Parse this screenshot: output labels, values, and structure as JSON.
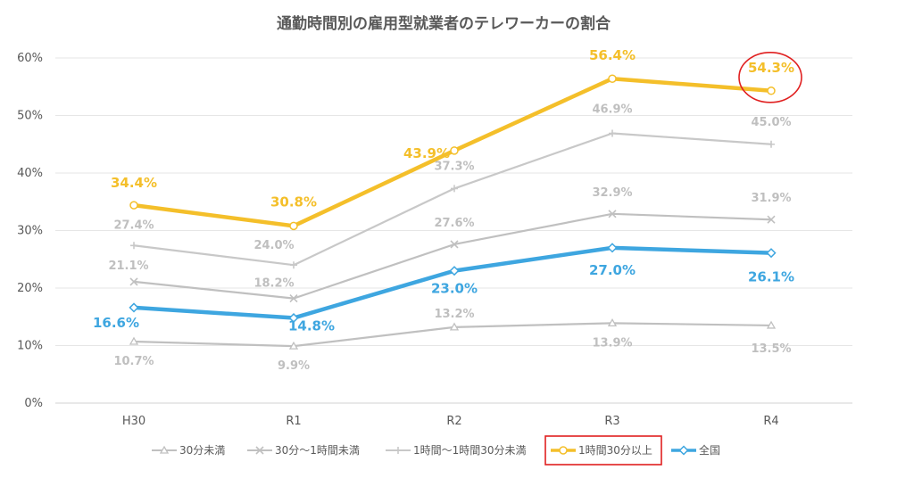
{
  "chart_data": {
    "type": "line",
    "title": "通勤時間別の雇用型就業者のテレワーカーの割合",
    "categories": [
      "H30",
      "R1",
      "R2",
      "R3",
      "R4"
    ],
    "y_ticks": [
      "0%",
      "10%",
      "20%",
      "30%",
      "40%",
      "50%",
      "60%"
    ],
    "ylim": [
      0,
      60
    ],
    "grid": true,
    "legend_position": "bottom",
    "series": [
      {
        "name": "30分未満",
        "values": [
          10.7,
          9.9,
          13.2,
          13.9,
          13.5
        ],
        "labels": [
          "10.7%",
          "9.9%",
          "13.2%",
          "13.9%",
          "13.5%"
        ],
        "color": "#c0c0c0",
        "marker": "triangle"
      },
      {
        "name": "30分～1時間未満",
        "values": [
          21.1,
          18.2,
          27.6,
          32.9,
          31.9
        ],
        "labels": [
          "21.1%",
          "18.2%",
          "27.6%",
          "32.9%",
          "31.9%"
        ],
        "color": "#c0c0c0",
        "marker": "x"
      },
      {
        "name": "1時間～1時間30分未満",
        "values": [
          27.4,
          24.0,
          37.3,
          46.9,
          45.0
        ],
        "labels": [
          "27.4%",
          "24.0%",
          "37.3%",
          "46.9%",
          "45.0%"
        ],
        "color": "#c8c8c8",
        "marker": "plus"
      },
      {
        "name": "1時間30分以上",
        "values": [
          34.4,
          30.8,
          43.9,
          56.4,
          54.3
        ],
        "labels": [
          "34.4%",
          "30.8%",
          "43.9%",
          "56.4%",
          "54.3%"
        ],
        "color": "#f4bf2a",
        "marker": "circle"
      },
      {
        "name": "全国",
        "values": [
          16.6,
          14.8,
          23.0,
          27.0,
          26.1
        ],
        "labels": [
          "16.6%",
          "14.8%",
          "23.0%",
          "27.0%",
          "26.1%"
        ],
        "color": "#3ea6e0",
        "marker": "diamond"
      }
    ],
    "highlights": {
      "legend_box_series": "1時間30分以上",
      "circled_point": "R4",
      "highlight_color": "#e02020"
    }
  }
}
